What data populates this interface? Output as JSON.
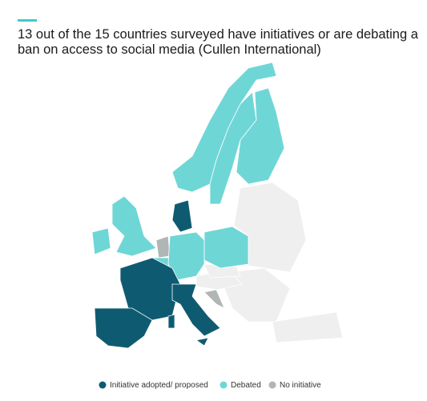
{
  "header": {
    "title": "13 out of the 15 countries surveyed have initiatives or are debating a ban on access to social media (Cullen International)"
  },
  "legend": [
    {
      "label": "Initiative adopted/ proposed",
      "color": "#0e5b71"
    },
    {
      "label": "Debated",
      "color": "#6fd6d6"
    },
    {
      "label": "No initiative",
      "color": "#b0b5b5"
    }
  ]
}
